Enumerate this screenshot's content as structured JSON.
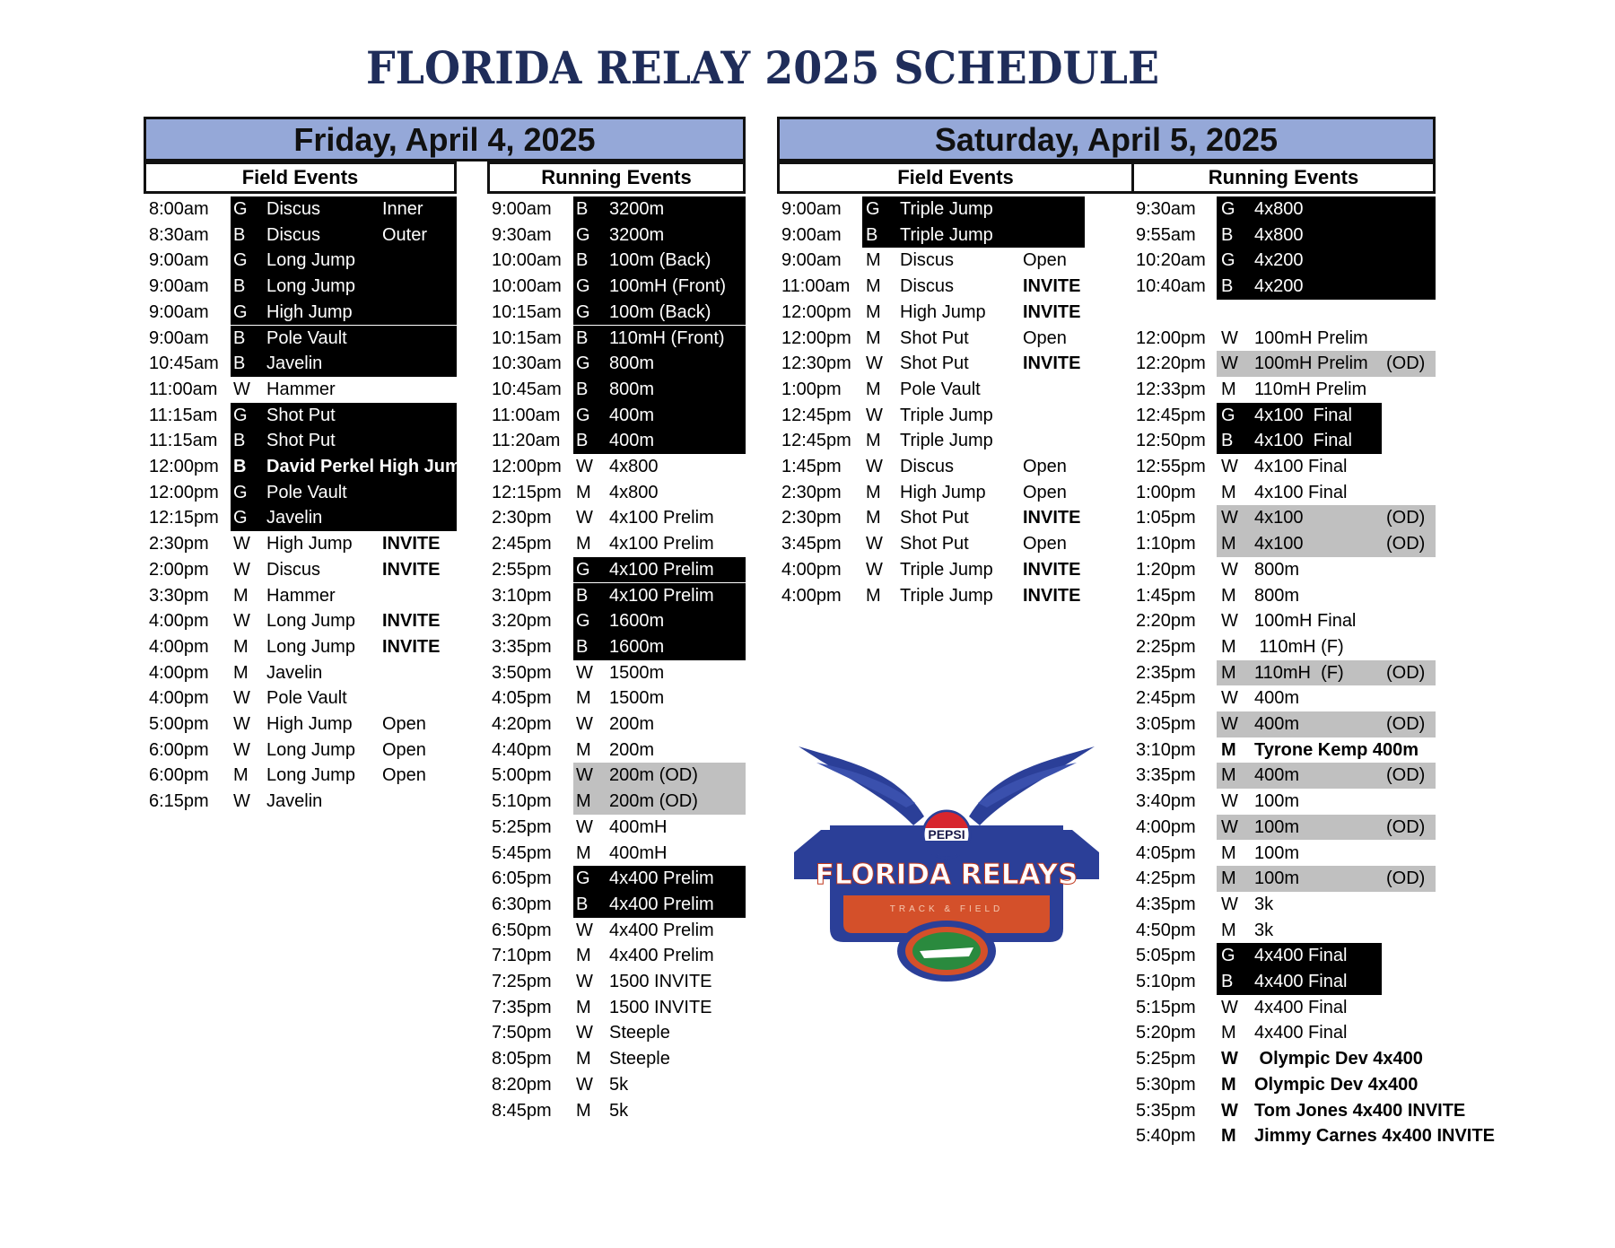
{
  "title": "FLORIDA RELAY 2025 SCHEDULE",
  "colors": {
    "title": "#1f2d5a",
    "day_header": "#95a8d8",
    "highlight_black": "#000000",
    "highlight_gray": "#c0c0c0",
    "logo_blue": "#2b3f98",
    "logo_orange": "#d4502a"
  },
  "friday": {
    "heading": "Friday, April 4, 2025",
    "field": {
      "heading": "Field Events",
      "rows": [
        {
          "time": "8:00am",
          "g": "G",
          "event": "Discus",
          "extra": "Inner",
          "hl": "black"
        },
        {
          "time": "8:30am",
          "g": "B",
          "event": "Discus",
          "extra": "Outer",
          "hl": "black"
        },
        {
          "time": "9:00am",
          "g": "G",
          "event": "Long Jump",
          "extra": "",
          "hl": "black"
        },
        {
          "time": "9:00am",
          "g": "B",
          "event": "Long Jump",
          "extra": "",
          "hl": "black"
        },
        {
          "time": "9:00am",
          "g": "G",
          "event": "High Jump",
          "extra": "",
          "hl": "black"
        },
        {
          "time": "9:00am",
          "g": "B",
          "event": "Pole Vault",
          "extra": "",
          "hl": "black"
        },
        {
          "time": "10:45am",
          "g": "B",
          "event": "Javelin",
          "extra": "",
          "hl": "black"
        },
        {
          "time": "11:00am",
          "g": "W",
          "event": "Hammer",
          "extra": ""
        },
        {
          "time": "11:15am",
          "g": "G",
          "event": "Shot Put",
          "extra": "",
          "hl": "black"
        },
        {
          "time": "11:15am",
          "g": "B",
          "event": "Shot Put",
          "extra": "",
          "hl": "black"
        },
        {
          "time": "12:00pm",
          "g": "B",
          "event": "David Perkel High Jump",
          "extra": "",
          "hl": "black",
          "bold": true
        },
        {
          "time": "12:00pm",
          "g": "G",
          "event": "Pole Vault",
          "extra": "",
          "hl": "black"
        },
        {
          "time": "12:15pm",
          "g": "G",
          "event": "Javelin",
          "extra": "",
          "hl": "black"
        },
        {
          "time": "2:30pm",
          "g": "W",
          "event": "High Jump",
          "extra": "INVITE"
        },
        {
          "time": "2:00pm",
          "g": "W",
          "event": "Discus",
          "extra": "INVITE"
        },
        {
          "time": "3:30pm",
          "g": "M",
          "event": "Hammer",
          "extra": ""
        },
        {
          "time": "4:00pm",
          "g": "W",
          "event": "Long Jump",
          "extra": "INVITE"
        },
        {
          "time": "4:00pm",
          "g": "M",
          "event": "Long Jump",
          "extra": "INVITE"
        },
        {
          "time": "4:00pm",
          "g": "M",
          "event": "Javelin",
          "extra": ""
        },
        {
          "time": "4:00pm",
          "g": "W",
          "event": "Pole Vault",
          "extra": ""
        },
        {
          "time": "5:00pm",
          "g": "W",
          "event": "High Jump",
          "extra": "Open"
        },
        {
          "time": "6:00pm",
          "g": "W",
          "event": "Long Jump",
          "extra": "Open"
        },
        {
          "time": "6:00pm",
          "g": "M",
          "event": "Long Jump",
          "extra": "Open"
        },
        {
          "time": "6:15pm",
          "g": "W",
          "event": "Javelin",
          "extra": ""
        }
      ]
    },
    "running": {
      "heading": "Running Events",
      "rows": [
        {
          "time": "9:00am",
          "g": "B",
          "event": "3200m",
          "extra": "",
          "hl": "black"
        },
        {
          "time": "9:30am",
          "g": "G",
          "event": "3200m",
          "extra": "",
          "hl": "black"
        },
        {
          "time": "10:00am",
          "g": "B",
          "event": "100m (Back)",
          "extra": "",
          "hl": "black"
        },
        {
          "time": "10:00am",
          "g": "G",
          "event": "100mH (Front)",
          "extra": "",
          "hl": "black"
        },
        {
          "time": "10:15am",
          "g": "G",
          "event": "100m (Back)",
          "extra": "",
          "hl": "black"
        },
        {
          "time": "10:15am",
          "g": "B",
          "event": "110mH (Front)",
          "extra": "",
          "hl": "black"
        },
        {
          "time": "10:30am",
          "g": "G",
          "event": "800m",
          "extra": "",
          "hl": "black"
        },
        {
          "time": "10:45am",
          "g": "B",
          "event": "800m",
          "extra": "",
          "hl": "black"
        },
        {
          "time": "11:00am",
          "g": "G",
          "event": "400m",
          "extra": "",
          "hl": "black"
        },
        {
          "time": "11:20am",
          "g": "B",
          "event": "400m",
          "extra": "",
          "hl": "black"
        },
        {
          "time": "12:00pm",
          "g": "W",
          "event": "4x800",
          "extra": ""
        },
        {
          "time": "12:15pm",
          "g": "M",
          "event": "4x800",
          "extra": ""
        },
        {
          "time": "2:30pm",
          "g": "W",
          "event": "4x100 Prelim",
          "extra": ""
        },
        {
          "time": "2:45pm",
          "g": "M",
          "event": "4x100 Prelim",
          "extra": ""
        },
        {
          "time": "2:55pm",
          "g": "G",
          "event": "4x100 Prelim",
          "extra": "",
          "hl": "black"
        },
        {
          "time": "3:10pm",
          "g": "B",
          "event": "4x100 Prelim",
          "extra": "",
          "hl": "black"
        },
        {
          "time": "3:20pm",
          "g": "G",
          "event": "1600m",
          "extra": "",
          "hl": "black"
        },
        {
          "time": "3:35pm",
          "g": "B",
          "event": "1600m",
          "extra": "",
          "hl": "black"
        },
        {
          "time": "3:50pm",
          "g": "W",
          "event": "1500m",
          "extra": ""
        },
        {
          "time": "4:05pm",
          "g": "M",
          "event": "1500m",
          "extra": ""
        },
        {
          "time": "4:20pm",
          "g": "W",
          "event": "200m",
          "extra": ""
        },
        {
          "time": "4:40pm",
          "g": "M",
          "event": "200m",
          "extra": ""
        },
        {
          "time": "5:00pm",
          "g": "W",
          "event": "200m (OD)",
          "extra": "",
          "hl": "gray"
        },
        {
          "time": "5:10pm",
          "g": "M",
          "event": "200m (OD)",
          "extra": "",
          "hl": "gray"
        },
        {
          "time": "5:25pm",
          "g": "W",
          "event": "400mH",
          "extra": ""
        },
        {
          "time": "5:45pm",
          "g": "M",
          "event": "400mH",
          "extra": ""
        },
        {
          "time": "6:05pm",
          "g": "G",
          "event": "4x400 Prelim",
          "extra": "",
          "hl": "black"
        },
        {
          "time": "6:30pm",
          "g": "B",
          "event": "4x400 Prelim",
          "extra": "",
          "hl": "black"
        },
        {
          "time": "6:50pm",
          "g": "W",
          "event": "4x400 Prelim",
          "extra": ""
        },
        {
          "time": "7:10pm",
          "g": "M",
          "event": "4x400 Prelim",
          "extra": ""
        },
        {
          "time": "7:25pm",
          "g": "W",
          "event": "1500 INVITE",
          "extra": ""
        },
        {
          "time": "7:35pm",
          "g": "M",
          "event": "1500 INVITE",
          "extra": ""
        },
        {
          "time": "7:50pm",
          "g": "W",
          "event": "Steeple",
          "extra": ""
        },
        {
          "time": "8:05pm",
          "g": "M",
          "event": "Steeple",
          "extra": ""
        },
        {
          "time": "8:20pm",
          "g": "W",
          "event": "5k",
          "extra": ""
        },
        {
          "time": "8:45pm",
          "g": "M",
          "event": "5k",
          "extra": ""
        }
      ]
    }
  },
  "saturday": {
    "heading": "Saturday, April 5, 2025",
    "field": {
      "heading": "Field Events",
      "rows": [
        {
          "time": "9:00am",
          "g": "G",
          "event": "Triple Jump",
          "extra": "",
          "hl": "black"
        },
        {
          "time": "9:00am",
          "g": "B",
          "event": "Triple Jump",
          "extra": "",
          "hl": "black"
        },
        {
          "time": "9:00am",
          "g": "M",
          "event": "Discus",
          "extra": "Open"
        },
        {
          "time": "11:00am",
          "g": "M",
          "event": "Discus",
          "extra": "INVITE"
        },
        {
          "time": "12:00pm",
          "g": "M",
          "event": "High Jump",
          "extra": "INVITE"
        },
        {
          "time": "12:00pm",
          "g": "M",
          "event": "Shot Put",
          "extra": "Open"
        },
        {
          "time": "12:30pm",
          "g": "W",
          "event": "Shot Put",
          "extra": "INVITE"
        },
        {
          "time": "1:00pm",
          "g": "M",
          "event": "Pole Vault",
          "extra": ""
        },
        {
          "time": "12:45pm",
          "g": "W",
          "event": "Triple Jump",
          "extra": ""
        },
        {
          "time": "12:45pm",
          "g": "M",
          "event": "Triple Jump",
          "extra": ""
        },
        {
          "time": "1:45pm",
          "g": "W",
          "event": "Discus",
          "extra": "Open"
        },
        {
          "time": "2:30pm",
          "g": "M",
          "event": "High Jump",
          "extra": "Open"
        },
        {
          "time": "2:30pm",
          "g": "M",
          "event": "Shot Put",
          "extra": "INVITE"
        },
        {
          "time": "3:45pm",
          "g": "W",
          "event": "Shot Put",
          "extra": "Open"
        },
        {
          "time": "4:00pm",
          "g": "W",
          "event": "Triple Jump",
          "extra": "INVITE"
        },
        {
          "time": "4:00pm",
          "g": "M",
          "event": "Triple Jump",
          "extra": "INVITE"
        }
      ]
    },
    "running": {
      "heading": "Running Events",
      "rows": [
        {
          "time": "9:30am",
          "g": "G",
          "event": "4x800",
          "extra": "",
          "hl": "black"
        },
        {
          "time": "9:55am",
          "g": "B",
          "event": "4x800",
          "extra": "",
          "hl": "black"
        },
        {
          "time": "10:20am",
          "g": "G",
          "event": "4x200",
          "extra": "",
          "hl": "black"
        },
        {
          "time": "10:40am",
          "g": "B",
          "event": "4x200",
          "extra": "",
          "hl": "black"
        },
        {
          "time": "",
          "g": "",
          "event": "",
          "extra": ""
        },
        {
          "time": "12:00pm",
          "g": "W",
          "event": "100mH Prelim",
          "extra": ""
        },
        {
          "time": "12:20pm",
          "g": "W",
          "event": "100mH Prelim",
          "extra": "(OD)",
          "hl": "gray"
        },
        {
          "time": "12:33pm",
          "g": "M",
          "event": "110mH Prelim",
          "extra": ""
        },
        {
          "time": "12:45pm",
          "g": "G",
          "event": "4x100  Final",
          "extra": "",
          "hl": "black"
        },
        {
          "time": "12:50pm",
          "g": "B",
          "event": "4x100  Final",
          "extra": "",
          "hl": "black"
        },
        {
          "time": "12:55pm",
          "g": "W",
          "event": "4x100 Final",
          "extra": ""
        },
        {
          "time": "1:00pm",
          "g": "M",
          "event": "4x100 Final",
          "extra": ""
        },
        {
          "time": "1:05pm",
          "g": "W",
          "event": "4x100",
          "extra": "(OD)",
          "hl": "gray"
        },
        {
          "time": "1:10pm",
          "g": "M",
          "event": "4x100",
          "extra": "(OD)",
          "hl": "gray"
        },
        {
          "time": "1:20pm",
          "g": "W",
          "event": "800m",
          "extra": ""
        },
        {
          "time": "1:45pm",
          "g": "M",
          "event": "800m",
          "extra": ""
        },
        {
          "time": "2:20pm",
          "g": "W",
          "event": "100mH Final",
          "extra": ""
        },
        {
          "time": "2:25pm",
          "g": "M",
          "event": " 110mH (F)",
          "extra": ""
        },
        {
          "time": "2:35pm",
          "g": "M",
          "event": "110mH  (F)",
          "extra": "(OD)",
          "hl": "gray"
        },
        {
          "time": "2:45pm",
          "g": "W",
          "event": "400m",
          "extra": ""
        },
        {
          "time": "3:05pm",
          "g": "W",
          "event": "400m",
          "extra": "(OD)",
          "hl": "gray"
        },
        {
          "time": "3:10pm",
          "g": "M",
          "event": "Tyrone Kemp 400m",
          "extra": "",
          "bold": true
        },
        {
          "time": "3:35pm",
          "g": "M",
          "event": "400m",
          "extra": "(OD)",
          "hl": "gray"
        },
        {
          "time": "3:40pm",
          "g": "W",
          "event": "100m",
          "extra": ""
        },
        {
          "time": "4:00pm",
          "g": "W",
          "event": "100m",
          "extra": "(OD)",
          "hl": "gray"
        },
        {
          "time": "4:05pm",
          "g": "M",
          "event": "100m",
          "extra": ""
        },
        {
          "time": "4:25pm",
          "g": "M",
          "event": "100m",
          "extra": "(OD)",
          "hl": "gray"
        },
        {
          "time": "4:35pm",
          "g": "W",
          "event": "3k",
          "extra": ""
        },
        {
          "time": "4:50pm",
          "g": "M",
          "event": "3k",
          "extra": ""
        },
        {
          "time": "5:05pm",
          "g": "G",
          "event": "4x400 Final",
          "extra": "",
          "hl": "black"
        },
        {
          "time": "5:10pm",
          "g": "B",
          "event": "4x400 Final",
          "extra": "",
          "hl": "black"
        },
        {
          "time": "5:15pm",
          "g": "W",
          "event": "4x400 Final",
          "extra": ""
        },
        {
          "time": "5:20pm",
          "g": "M",
          "event": "4x400 Final",
          "extra": ""
        },
        {
          "time": "5:25pm",
          "g": "W",
          "event": " Olympic Dev 4x400",
          "extra": "",
          "bold": true
        },
        {
          "time": "5:30pm",
          "g": "M",
          "event": "Olympic Dev 4x400",
          "extra": "",
          "bold": true
        },
        {
          "time": "5:35pm",
          "g": "W",
          "event": "Tom Jones 4x400 INVITE",
          "extra": "",
          "bold": true
        },
        {
          "time": "5:40pm",
          "g": "M",
          "event": "Jimmy Carnes 4x400 INVITE",
          "extra": "",
          "bold": true
        }
      ]
    }
  },
  "logo": {
    "sponsor": "PEPSI",
    "name": "FLORIDA RELAYS",
    "tagline": "TRACK & FIELD"
  }
}
